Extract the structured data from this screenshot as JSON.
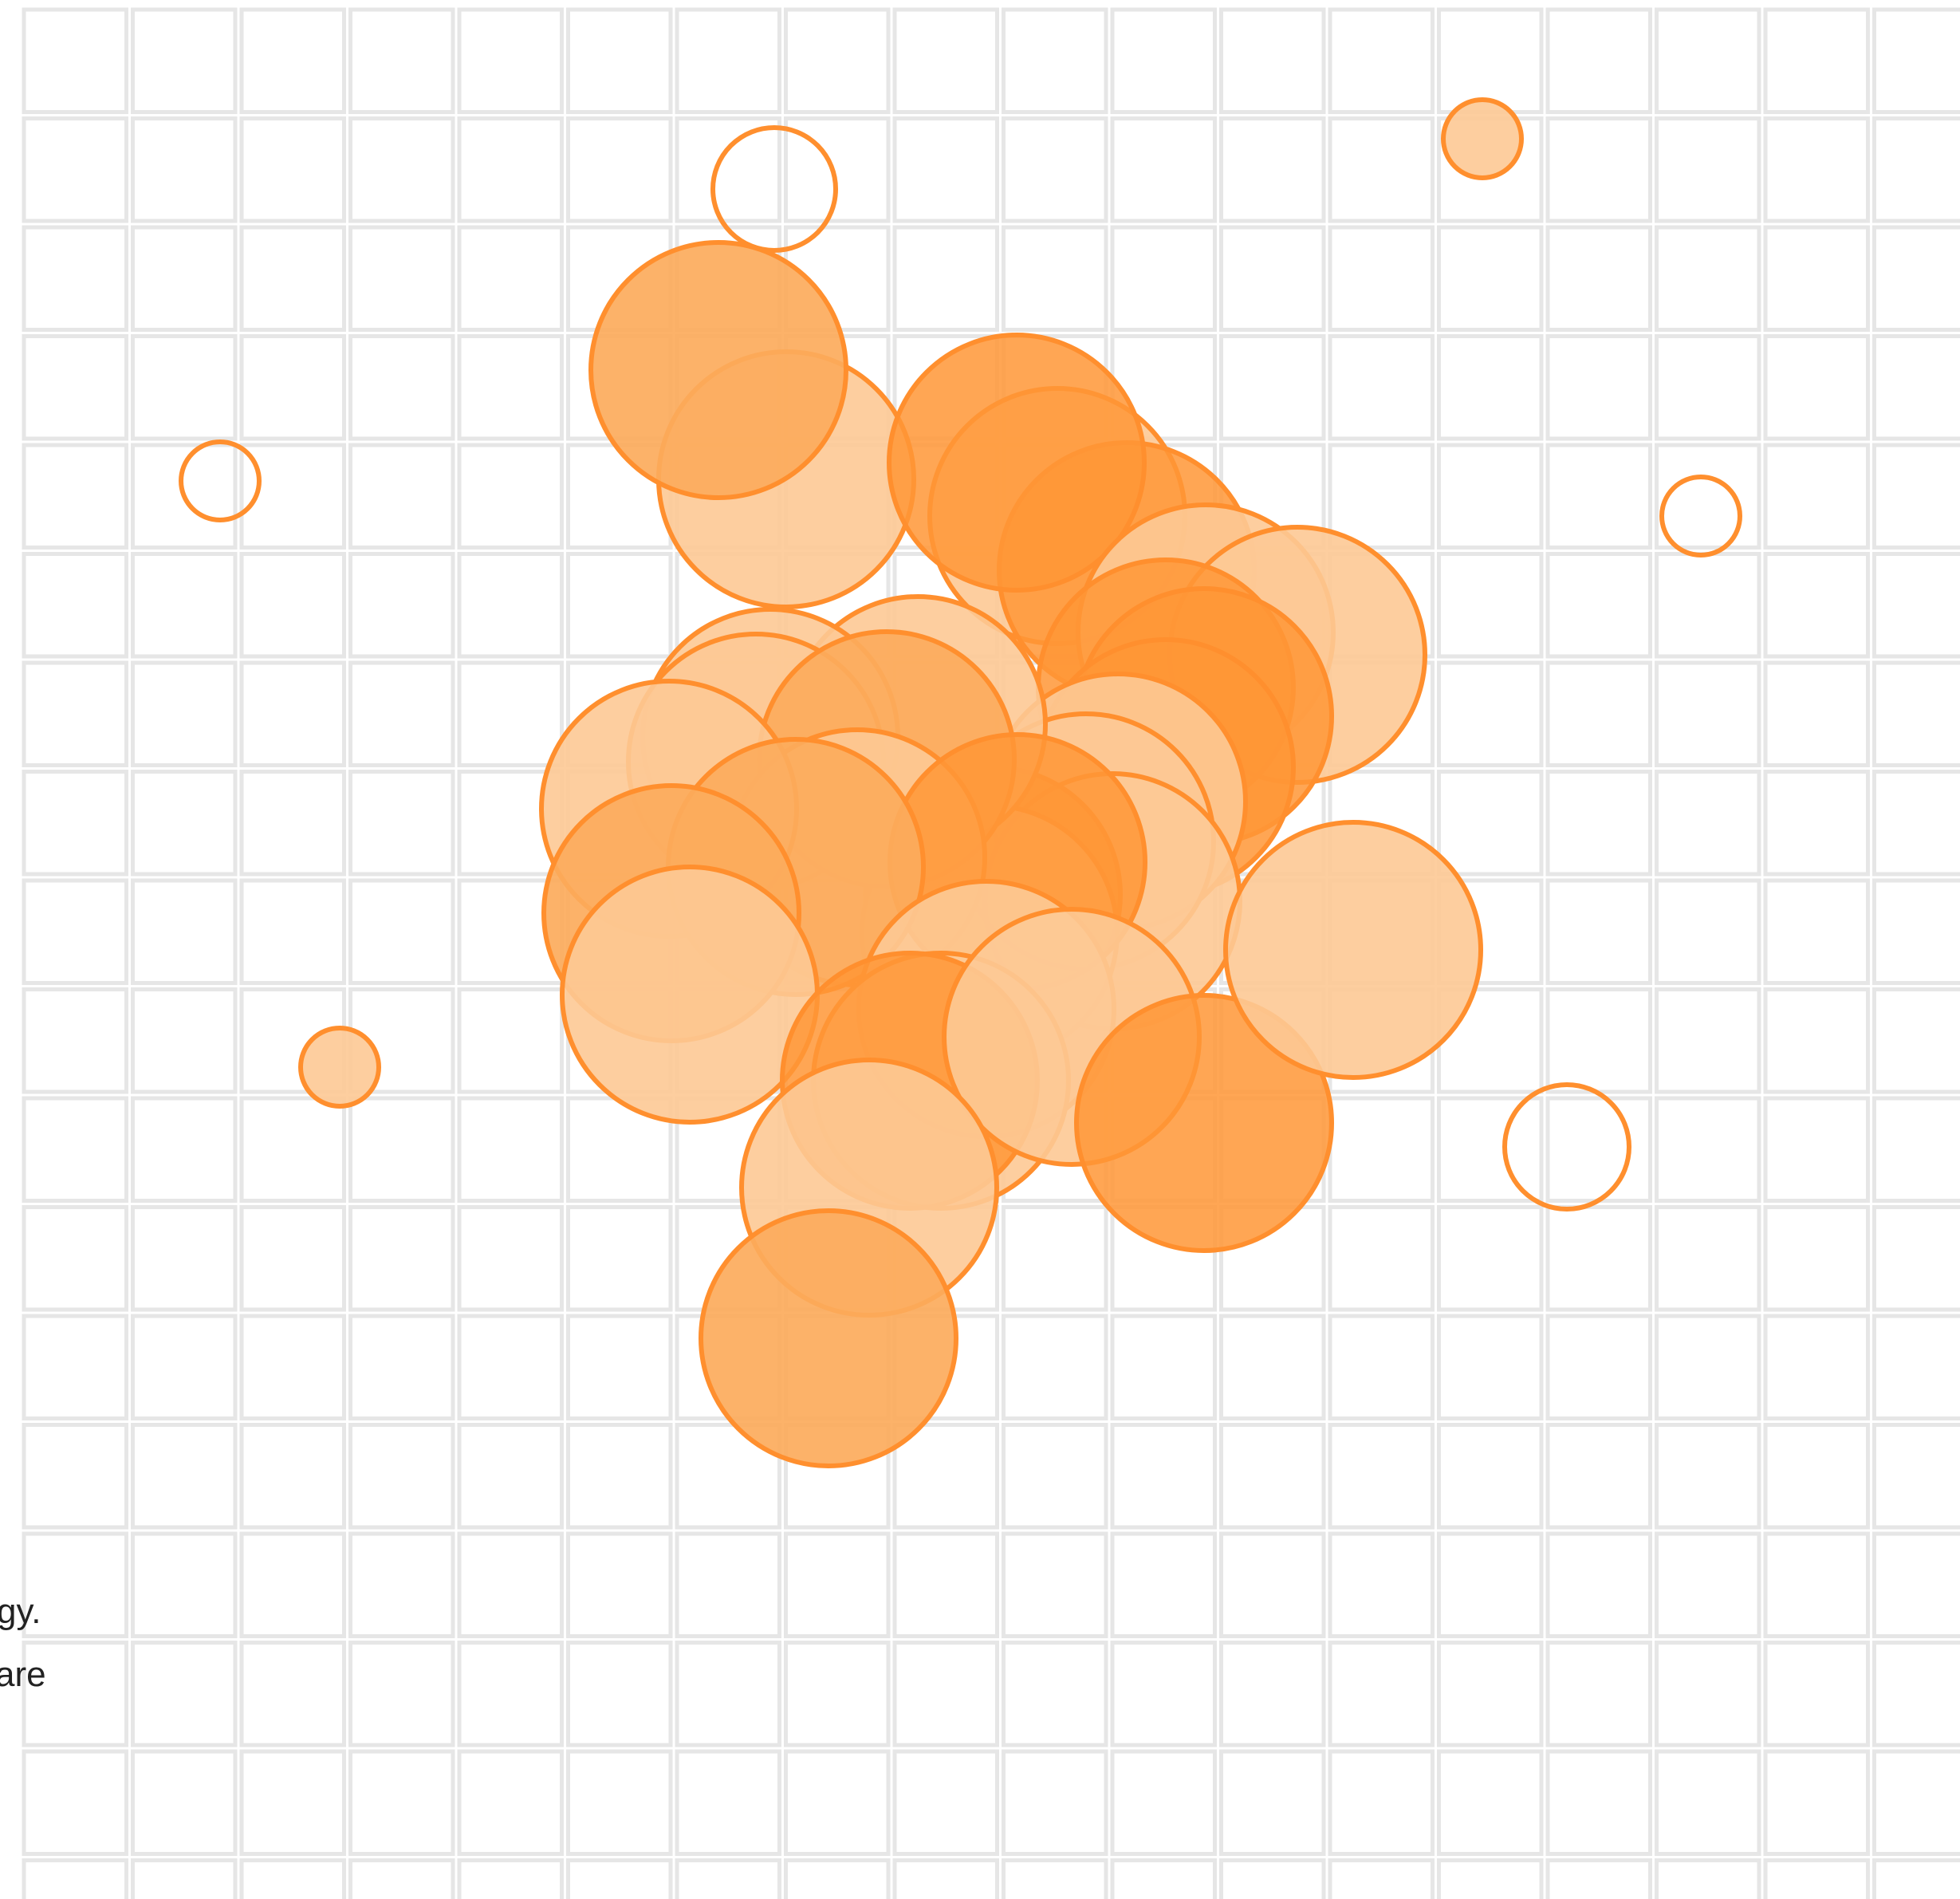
{
  "caption": {
    "line_1": "gy.",
    "line_2": "are"
  },
  "colors": {
    "background": "#ffffff",
    "grid_line": "#e6e6e6",
    "accent_orange": "#ff8f2e",
    "fill_light": "#fdc995",
    "fill_medium": "#fcab5c",
    "fill_dark": "#ff9636"
  },
  "bubbles": [
    {
      "name": "bubble-hollow-small-top",
      "style": "hollow"
    },
    {
      "name": "bubble-small-top-right",
      "style": "light"
    },
    {
      "name": "bubble-hollow-left",
      "style": "hollow"
    },
    {
      "name": "bubble-hollow-right",
      "style": "hollow"
    },
    {
      "name": "bubble-small-left",
      "style": "light"
    },
    {
      "name": "bubble-hollow-lower-right",
      "style": "hollow"
    }
  ]
}
